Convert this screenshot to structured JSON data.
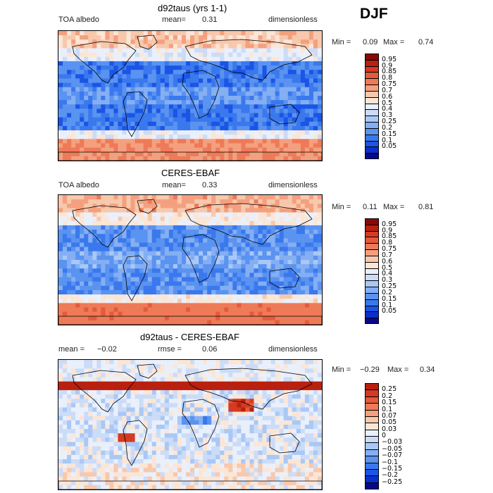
{
  "season": "DJF",
  "colors": {
    "abs_scale": [
      "#08088a",
      "#0a2fcf",
      "#1a55e6",
      "#3a78ee",
      "#5a93f0",
      "#85aff3",
      "#a9c8f6",
      "#cbdcf8",
      "#eaf0fb",
      "#fbe6d6",
      "#f8c8ad",
      "#f4a07f",
      "#ee7a58",
      "#e45a3a",
      "#d63a22",
      "#b9200f",
      "#8a0806"
    ],
    "diff_scale": [
      "#08088a",
      "#0a2fcf",
      "#1a55e6",
      "#3a78ee",
      "#5a93f0",
      "#85aff3",
      "#a9c8f6",
      "#cbdcf8",
      "#eaf0fb",
      "#fbe6d6",
      "#f8c8ad",
      "#f4a07f",
      "#ee7a58",
      "#e45a3a",
      "#d63a22",
      "#b9200f"
    ]
  },
  "chart_data": [
    {
      "type": "heatmap",
      "title": "d92taus (yrs 1-1)",
      "left_label": "TOA albedo",
      "mean_label": "mean=",
      "mean_value": "0.31",
      "units": "dimensionless",
      "min_label": "Min =",
      "min_value": "0.09",
      "max_label": "Max =",
      "max_value": "0.74",
      "levels": [
        "0.95",
        "0.9",
        "0.85",
        "0.8",
        "0.75",
        "0.7",
        "0.6",
        "0.5",
        "0.4",
        "0.3",
        "0.25",
        "0.2",
        "0.15",
        "0.1",
        "0.05"
      ]
    },
    {
      "type": "heatmap",
      "title": "CERES-EBAF",
      "left_label": "TOA albedo",
      "mean_label": "mean=",
      "mean_value": "0.33",
      "units": "dimensionless",
      "min_label": "Min =",
      "min_value": "0.11",
      "max_label": "Max =",
      "max_value": "0.81",
      "levels": [
        "0.95",
        "0.9",
        "0.85",
        "0.8",
        "0.75",
        "0.7",
        "0.6",
        "0.5",
        "0.4",
        "0.3",
        "0.25",
        "0.2",
        "0.15",
        "0.1",
        "0.05"
      ]
    },
    {
      "type": "heatmap",
      "title": "d92taus - CERES-EBAF",
      "left_label": "mean =",
      "mean_label": "",
      "mean_value": "−0.02",
      "rmse_label": "rmse =",
      "rmse_value": "0.06",
      "units": "dimensionless",
      "min_label": "Min =",
      "min_value": "−0.29",
      "max_label": "Max =",
      "max_value": "0.34",
      "levels": [
        "0.25",
        "0.2",
        "0.15",
        "0.1",
        "0.07",
        "0.05",
        "0.03",
        "0",
        "−0.03",
        "−0.05",
        "−0.07",
        "−0.1",
        "−0.15",
        "−0.2",
        "−0.25"
      ]
    }
  ]
}
